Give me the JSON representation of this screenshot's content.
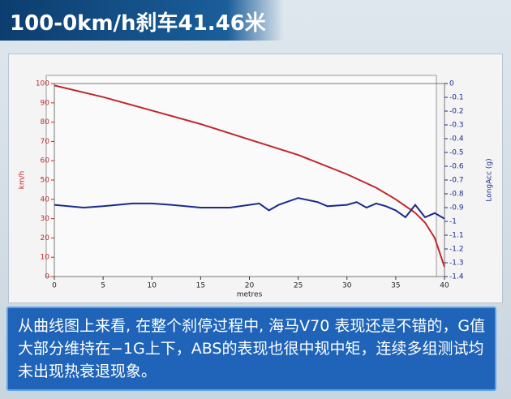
{
  "header": {
    "title": "100-0km/h刹车41.46米"
  },
  "chart_data": {
    "type": "line",
    "x": [
      0,
      5,
      10,
      15,
      20,
      25,
      30,
      33,
      35,
      37,
      38,
      39,
      40
    ],
    "xlabel": "metres",
    "ylabel": "km/h",
    "y2label": "LongAcc (g)",
    "xlim": [
      0,
      40
    ],
    "xticks": [
      0,
      5,
      10,
      15,
      20,
      25,
      30,
      35,
      40
    ],
    "ylim": [
      0,
      100
    ],
    "yticks": [
      0,
      10,
      20,
      30,
      40,
      50,
      60,
      70,
      80,
      90,
      100
    ],
    "y2lim": [
      -1.4,
      0
    ],
    "y2ticks": [
      0,
      -0.1,
      -0.2,
      -0.3,
      -0.4,
      -0.5,
      -0.6,
      -0.7,
      -0.8,
      -0.9,
      -1,
      -1.1,
      -1.2,
      -1.3,
      -1.4
    ],
    "grid": false,
    "series": [
      {
        "color": "#c0272d",
        "x": [
          0,
          5,
          10,
          15,
          20,
          25,
          30,
          33,
          35,
          37,
          38,
          39,
          40
        ],
        "values": [
          99,
          93,
          86,
          79,
          71,
          63,
          53,
          46,
          40,
          33,
          28,
          20,
          5
        ]
      },
      {
        "color": "#1a2a8c",
        "axis": "y2",
        "x": [
          0,
          3,
          5,
          8,
          10,
          12,
          15,
          18,
          20,
          21,
          22,
          23,
          25,
          27,
          28,
          30,
          31,
          32,
          33,
          34,
          35,
          36,
          37,
          38,
          39,
          40
        ],
        "values": [
          -0.88,
          -0.9,
          -0.89,
          -0.87,
          -0.87,
          -0.88,
          -0.9,
          -0.9,
          -0.88,
          -0.87,
          -0.92,
          -0.88,
          -0.83,
          -0.86,
          -0.89,
          -0.88,
          -0.86,
          -0.9,
          -0.87,
          -0.89,
          -0.92,
          -0.97,
          -0.88,
          -0.97,
          -0.94,
          -0.98
        ]
      }
    ]
  },
  "caption": {
    "text": "从曲线图上来看, 在整个刹停过程中, 海马V70 表现还是不错的，G值大部分维持在−1G上下，ABS的表现也很中规中矩，连续多组测试均未出现热衰退现象。"
  }
}
